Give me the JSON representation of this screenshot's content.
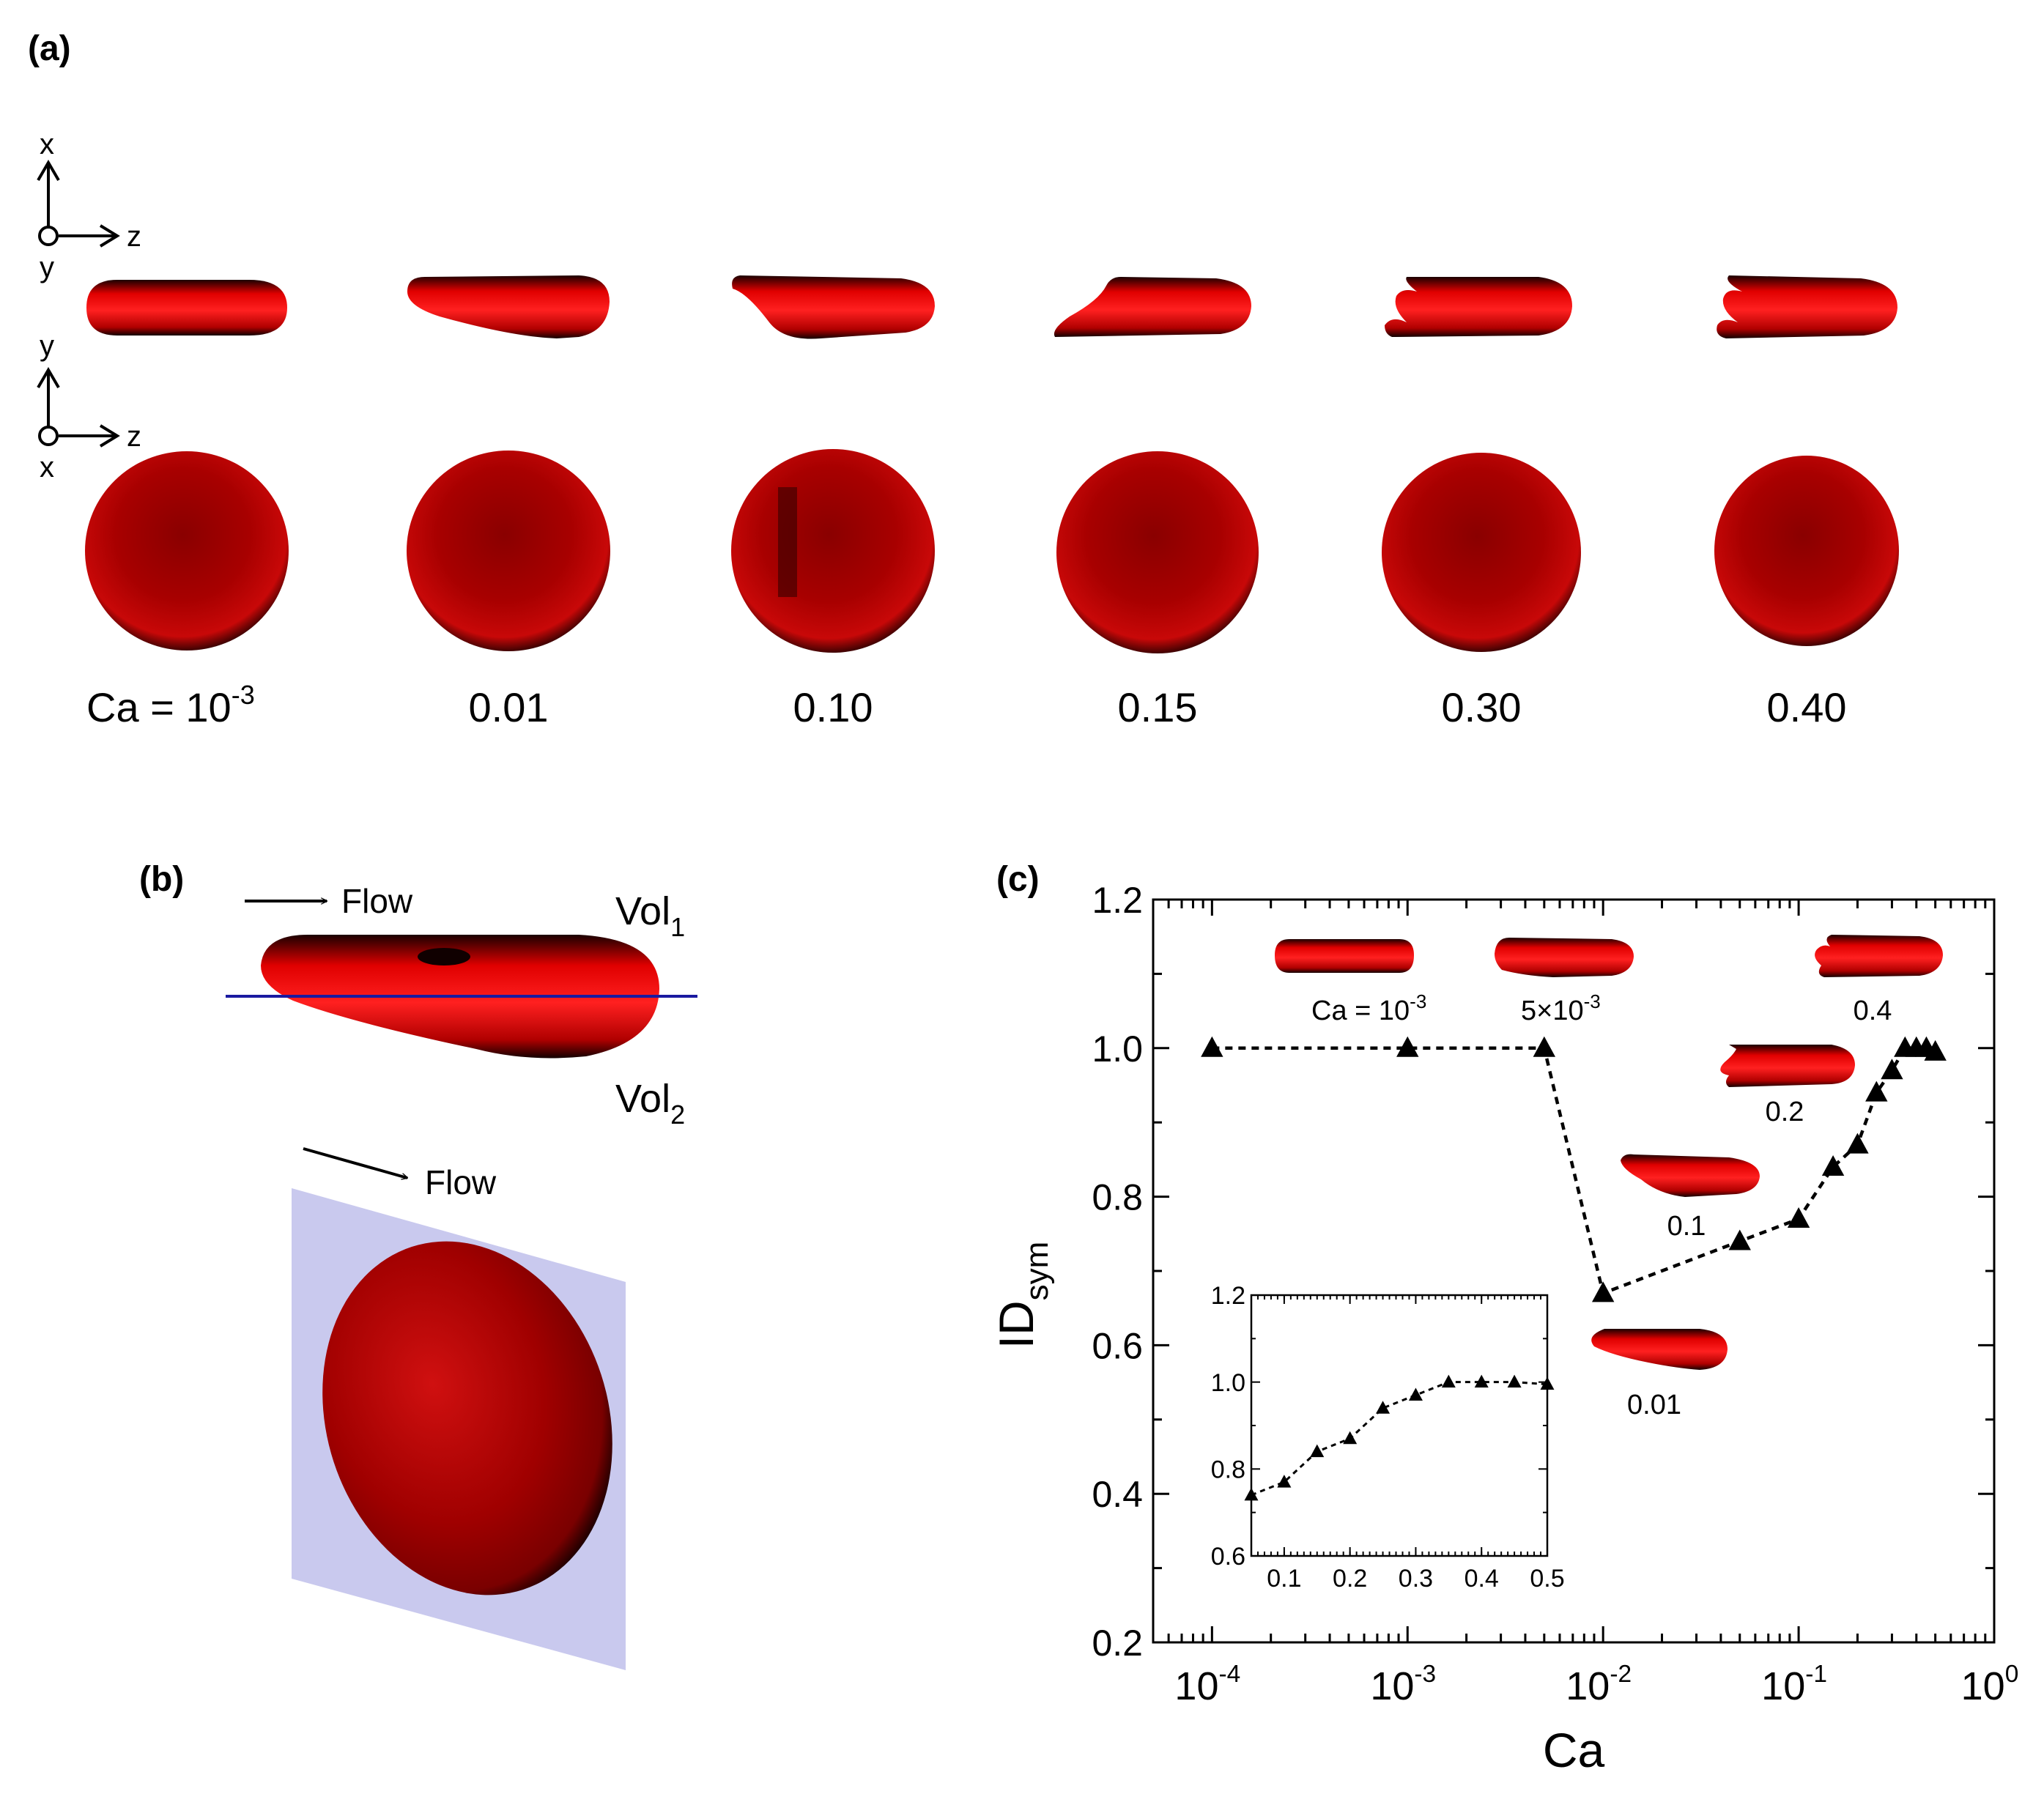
{
  "panel_a": {
    "label": "(a)",
    "axes_top": {
      "up": "x",
      "right": "z",
      "out": "y"
    },
    "axes_bottom": {
      "up": "y",
      "right": "z",
      "out": "x"
    },
    "ca_prefix": "Ca = ",
    "first_value": {
      "base": "10",
      "exp": "-3"
    },
    "values": [
      "0.01",
      "0.10",
      "0.15",
      "0.30",
      "0.40"
    ]
  },
  "panel_b": {
    "label": "(b)",
    "flow": "Flow",
    "vol1": {
      "main": "Vol",
      "sub": "1"
    },
    "vol2": {
      "main": "Vol",
      "sub": "2"
    }
  },
  "panel_c": {
    "label": "(c)",
    "shape_labels": {
      "ca_prefix": "Ca = ",
      "first": {
        "base": "10",
        "exp": "-3"
      },
      "second": {
        "base": "5×10",
        "exp": "-3"
      },
      "others": [
        "0.4",
        "0.2",
        "0.1",
        "0.01"
      ]
    }
  },
  "colors": {
    "cell": "#d10000",
    "plane": "#c9c9ee",
    "line": "#1a1aa0"
  },
  "chart_data": [
    {
      "type": "scatter",
      "title": "",
      "xlabel": "Ca",
      "ylabel": {
        "main": "ID",
        "sub": "sym"
      },
      "xscale": "log",
      "xlim": [
        5e-05,
        1
      ],
      "ylim": [
        0.2,
        1.2
      ],
      "xticks": [
        {
          "value": 0.0001,
          "base": "10",
          "exp": "-4"
        },
        {
          "value": 0.001,
          "base": "10",
          "exp": "-3"
        },
        {
          "value": 0.01,
          "base": "10",
          "exp": "-2"
        },
        {
          "value": 0.1,
          "base": "10",
          "exp": "-1"
        },
        {
          "value": 1,
          "base": "10",
          "exp": "0"
        }
      ],
      "yticks": [
        "0.2",
        "0.4",
        "0.6",
        "0.8",
        "1.0",
        "1.2"
      ],
      "line_style": "dashed",
      "marker": "triangle",
      "series": [
        {
          "x": [
            0.0001,
            0.001,
            0.005,
            0.01,
            0.05,
            0.1,
            0.15,
            0.2,
            0.25,
            0.3,
            0.35,
            0.4,
            0.45,
            0.5
          ],
          "y": [
            1.0,
            1.0,
            1.0,
            0.67,
            0.74,
            0.77,
            0.84,
            0.87,
            0.94,
            0.97,
            1.0,
            1.0,
            1.0,
            0.995
          ]
        }
      ]
    },
    {
      "type": "scatter",
      "title": "",
      "xlim": [
        0.05,
        0.5
      ],
      "ylim": [
        0.6,
        1.2
      ],
      "xticks": [
        "0.1",
        "0.2",
        "0.3",
        "0.4",
        "0.5"
      ],
      "yticks": [
        "0.6",
        "0.8",
        "1.0",
        "1.2"
      ],
      "line_style": "dashed",
      "marker": "triangle",
      "series": [
        {
          "x": [
            0.05,
            0.1,
            0.15,
            0.2,
            0.25,
            0.3,
            0.35,
            0.4,
            0.45,
            0.5
          ],
          "y": [
            0.74,
            0.77,
            0.84,
            0.87,
            0.94,
            0.97,
            1.0,
            1.0,
            1.0,
            0.995
          ]
        }
      ]
    }
  ]
}
